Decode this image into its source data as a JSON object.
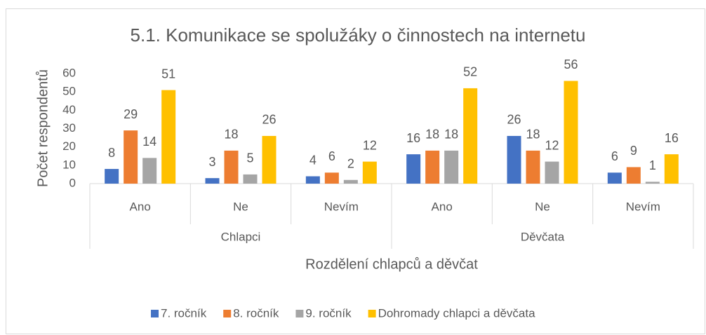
{
  "chart_data": {
    "type": "bar",
    "title": "5.1. Komunikace se spolužáky o činnostech na internetu",
    "x_label": "Rozdělení chlapců a děvčat",
    "y_label": "Počet respondentů",
    "categories": [
      "Ano",
      "Ne",
      "Nevím",
      "Ano",
      "Ne",
      "Nevím"
    ],
    "groups": [
      "Chlapci",
      "Děvčata"
    ],
    "series": [
      {
        "name": "7. ročník",
        "color": "#4472c4",
        "values": [
          8,
          3,
          4,
          16,
          26,
          6
        ]
      },
      {
        "name": "8. ročník",
        "color": "#ed7d31",
        "values": [
          29,
          18,
          6,
          18,
          18,
          9
        ]
      },
      {
        "name": "9. ročník",
        "color": "#a5a5a5",
        "values": [
          14,
          5,
          2,
          18,
          12,
          1
        ]
      },
      {
        "name": "Dohromady chlapci a děvčata",
        "color": "#ffc000",
        "values": [
          51,
          26,
          12,
          52,
          56,
          16
        ]
      }
    ],
    "ylim": [
      0,
      60
    ],
    "yticks": [
      0,
      10,
      20,
      30,
      40,
      50,
      60
    ],
    "grid": false,
    "legend": "bottom"
  }
}
